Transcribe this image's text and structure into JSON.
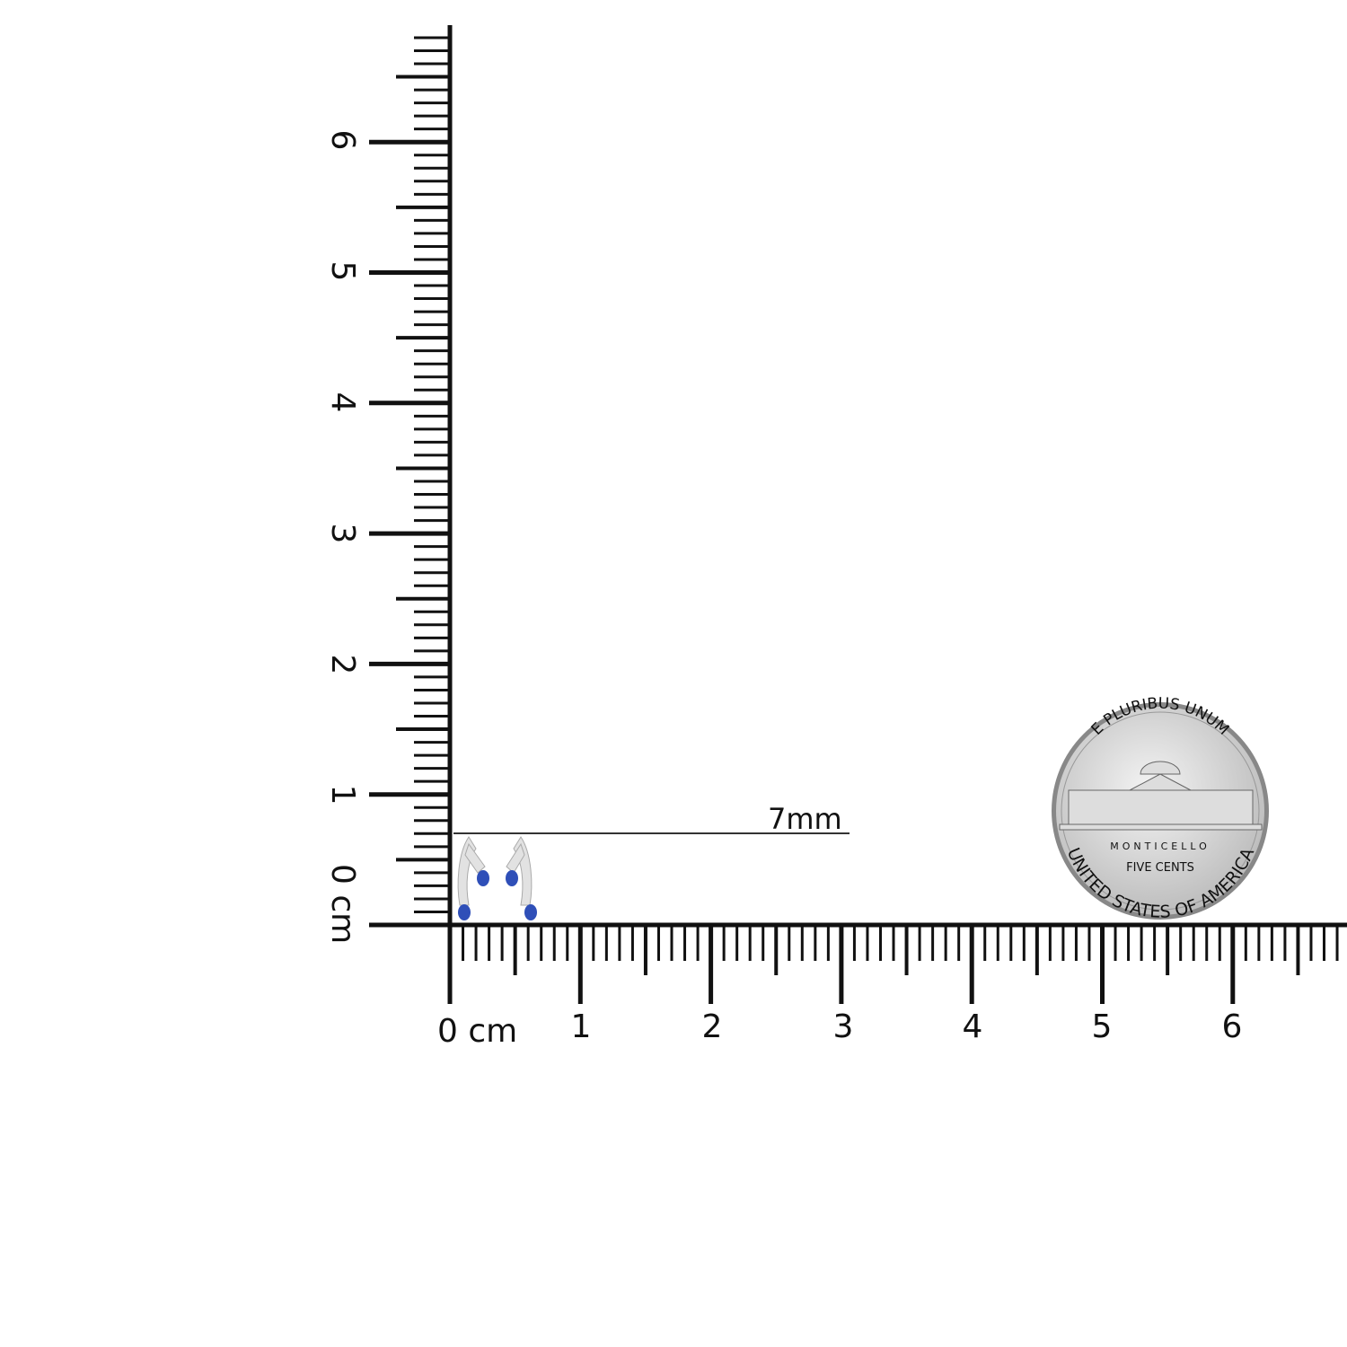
{
  "rulers": {
    "unit": "cm",
    "horizontal": {
      "labels": [
        "0 cm",
        "1",
        "2",
        "3",
        "4",
        "5",
        "6"
      ]
    },
    "vertical": {
      "labels": [
        "0 cm",
        "1",
        "2",
        "3",
        "4",
        "5",
        "6"
      ]
    }
  },
  "measurement": {
    "label": "7mm",
    "value_mm": 7
  },
  "coin": {
    "top_text": "E PLURIBUS UNUM",
    "building": "MONTICELLO",
    "denomination": "FIVE CENTS",
    "bottom_text": "UNITED STATES OF AMERICA"
  },
  "colors": {
    "ruler": "#111111",
    "sapphire": "#2f4fb8",
    "metal": "#d8d8d8",
    "coin": "#c9c9c9"
  }
}
